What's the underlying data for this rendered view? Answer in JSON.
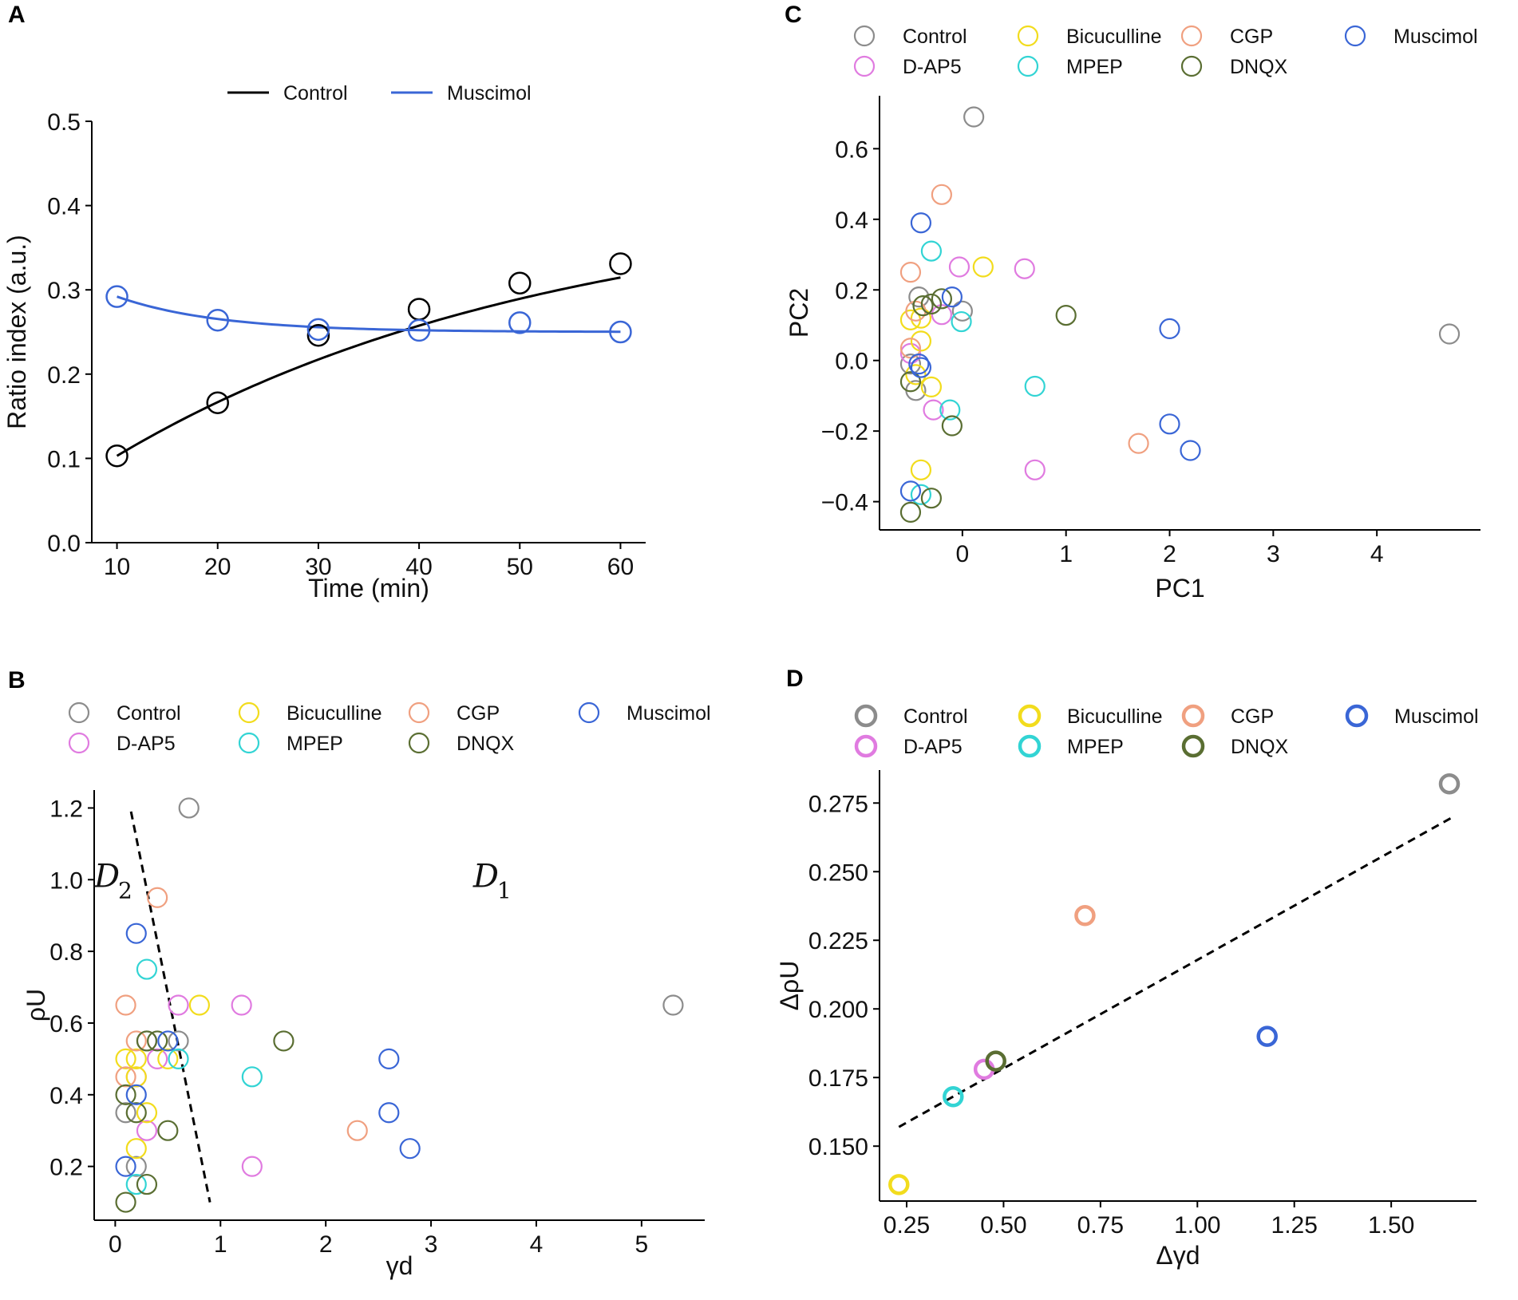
{
  "figure": {
    "colors": {
      "Control": "#8c8c8c",
      "D-AP5": "#e07be0",
      "Bicuculline": "#f2dc1d",
      "MPEP": "#32d4d4",
      "CGP": "#f0a080",
      "DNQX": "#5a6e32",
      "Muscimol": "#3a66d6",
      "ControlLine": "#000000"
    }
  },
  "chart_data": [
    {
      "id": "A",
      "panel_label": "A",
      "type": "line",
      "xlabel": "Time (min)",
      "ylabel": "Ratio index (a.u.)",
      "xlim": [
        7.5,
        62.5
      ],
      "ylim": [
        0.0,
        0.5
      ],
      "xticks": [
        10,
        20,
        30,
        40,
        50,
        60
      ],
      "yticks": [
        0.0,
        0.1,
        0.2,
        0.3,
        0.4,
        0.5
      ],
      "xtick_labels": [
        "10",
        "20",
        "30",
        "40",
        "50",
        "60"
      ],
      "ytick_labels": [
        "0.0",
        "0.1",
        "0.2",
        "0.3",
        "0.4",
        "0.5"
      ],
      "legend": [
        "Control",
        "Muscimol"
      ],
      "series": [
        {
          "name": "Control",
          "points": [
            [
              10,
              0.103
            ],
            [
              20,
              0.166
            ],
            [
              30,
              0.246
            ],
            [
              40,
              0.277
            ],
            [
              50,
              0.308
            ],
            [
              60,
              0.331
            ]
          ],
          "fit": {
            "a": 0.412,
            "b": 0.309,
            "k": 0.0231,
            "x0": 10
          }
        },
        {
          "name": "Muscimol",
          "points": [
            [
              10,
              0.292
            ],
            [
              20,
              0.264
            ],
            [
              30,
              0.253
            ],
            [
              40,
              0.252
            ],
            [
              50,
              0.261
            ],
            [
              60,
              0.25
            ]
          ],
          "fit": {
            "a": 0.25,
            "b": -0.042,
            "k": 0.1,
            "x0": 10
          }
        }
      ]
    },
    {
      "id": "B",
      "panel_label": "B",
      "type": "scatter",
      "xlabel": "γd",
      "ylabel": "ρU",
      "xlim": [
        -0.2,
        5.6
      ],
      "ylim": [
        0.05,
        1.25
      ],
      "xticks": [
        0,
        1,
        2,
        3,
        4,
        5
      ],
      "yticks": [
        0.2,
        0.4,
        0.6,
        0.8,
        1.0,
        1.2
      ],
      "xtick_labels": [
        "0",
        "1",
        "2",
        "3",
        "4",
        "5"
      ],
      "ytick_labels": [
        "0.2",
        "0.4",
        "0.6",
        "0.8",
        "1.0",
        "1.2"
      ],
      "legend": [
        "Control",
        "D-AP5",
        "Bicuculline",
        "MPEP",
        "CGP",
        "DNQX",
        "Muscimol"
      ],
      "divider": [
        [
          0.15,
          1.19
        ],
        [
          0.9,
          0.1
        ]
      ],
      "regions": [
        {
          "label": "D",
          "sub": "2",
          "x": -0.2,
          "y": 0.98
        },
        {
          "label": "D",
          "sub": "1",
          "x": 3.4,
          "y": 0.98
        }
      ],
      "series": [
        {
          "name": "Control",
          "points": [
            [
              0.7,
              1.2
            ],
            [
              5.3,
              0.65
            ],
            [
              0.6,
              0.55
            ],
            [
              0.1,
              0.35
            ],
            [
              0.2,
              0.2
            ],
            [
              0.3,
              0.55
            ]
          ]
        },
        {
          "name": "D-AP5",
          "points": [
            [
              0.6,
              0.65
            ],
            [
              1.2,
              0.65
            ],
            [
              0.4,
              0.5
            ],
            [
              0.3,
              0.3
            ],
            [
              1.3,
              0.2
            ],
            [
              0.2,
              0.45
            ]
          ]
        },
        {
          "name": "Bicuculline",
          "points": [
            [
              0.8,
              0.65
            ],
            [
              0.1,
              0.5
            ],
            [
              0.2,
              0.5
            ],
            [
              0.2,
              0.45
            ],
            [
              0.5,
              0.5
            ],
            [
              0.3,
              0.35
            ],
            [
              0.2,
              0.25
            ]
          ]
        },
        {
          "name": "MPEP",
          "points": [
            [
              0.3,
              0.75
            ],
            [
              0.6,
              0.5
            ],
            [
              1.3,
              0.45
            ],
            [
              0.2,
              0.15
            ]
          ]
        },
        {
          "name": "CGP",
          "points": [
            [
              0.4,
              0.95
            ],
            [
              0.1,
              0.65
            ],
            [
              0.2,
              0.55
            ],
            [
              0.1,
              0.45
            ],
            [
              2.3,
              0.3
            ]
          ]
        },
        {
          "name": "DNQX",
          "points": [
            [
              0.3,
              0.55
            ],
            [
              0.4,
              0.55
            ],
            [
              1.6,
              0.55
            ],
            [
              0.1,
              0.4
            ],
            [
              0.2,
              0.35
            ],
            [
              0.5,
              0.3
            ],
            [
              0.3,
              0.15
            ],
            [
              0.1,
              0.1
            ]
          ]
        },
        {
          "name": "Muscimol",
          "points": [
            [
              0.2,
              0.85
            ],
            [
              0.5,
              0.55
            ],
            [
              2.6,
              0.5
            ],
            [
              0.2,
              0.4
            ],
            [
              2.6,
              0.35
            ],
            [
              2.8,
              0.25
            ],
            [
              0.1,
              0.2
            ]
          ]
        }
      ]
    },
    {
      "id": "C",
      "panel_label": "C",
      "type": "scatter",
      "xlabel": "PC1",
      "ylabel": "PC2",
      "xlim": [
        -0.8,
        5.0
      ],
      "ylim": [
        -0.48,
        0.75
      ],
      "xticks": [
        0,
        1,
        2,
        3,
        4
      ],
      "yticks": [
        -0.4,
        -0.2,
        0.0,
        0.2,
        0.4,
        0.6
      ],
      "xtick_labels": [
        "0",
        "1",
        "2",
        "3",
        "4"
      ],
      "ytick_labels": [
        "−0.4",
        "−0.2",
        "0.0",
        "0.2",
        "0.4",
        "0.6"
      ],
      "legend": [
        "Control",
        "D-AP5",
        "Bicuculline",
        "MPEP",
        "CGP",
        "DNQX",
        "Muscimol"
      ],
      "series": [
        {
          "name": "Control",
          "points": [
            [
              0.11,
              0.69
            ],
            [
              4.7,
              0.075
            ],
            [
              -0.42,
              0.18
            ],
            [
              0.0,
              0.14
            ],
            [
              -0.45,
              -0.085
            ],
            [
              -0.5,
              -0.01
            ]
          ]
        },
        {
          "name": "D-AP5",
          "points": [
            [
              -0.03,
              0.265
            ],
            [
              0.6,
              0.26
            ],
            [
              -0.2,
              0.13
            ],
            [
              -0.28,
              -0.14
            ],
            [
              0.7,
              -0.31
            ],
            [
              -0.5,
              0.02
            ]
          ]
        },
        {
          "name": "Bicuculline",
          "points": [
            [
              0.2,
              0.265
            ],
            [
              -0.5,
              0.115
            ],
            [
              -0.4,
              0.055
            ],
            [
              -0.3,
              -0.075
            ],
            [
              -0.4,
              -0.31
            ],
            [
              -0.4,
              0.12
            ],
            [
              -0.45,
              -0.04
            ]
          ]
        },
        {
          "name": "MPEP",
          "points": [
            [
              -0.3,
              0.31
            ],
            [
              -0.01,
              0.11
            ],
            [
              -0.12,
              -0.14
            ],
            [
              0.7,
              -0.073
            ],
            [
              -0.4,
              -0.38
            ]
          ]
        },
        {
          "name": "CGP",
          "points": [
            [
              -0.2,
              0.47
            ],
            [
              -0.5,
              0.25
            ],
            [
              -0.5,
              0.035
            ],
            [
              1.7,
              -0.235
            ],
            [
              -0.45,
              0.14
            ]
          ]
        },
        {
          "name": "DNQX",
          "points": [
            [
              -0.2,
              0.175
            ],
            [
              -0.3,
              0.16
            ],
            [
              1.0,
              0.128
            ],
            [
              -0.1,
              -0.185
            ],
            [
              -0.5,
              -0.06
            ],
            [
              -0.3,
              -0.39
            ],
            [
              -0.5,
              -0.43
            ],
            [
              -0.38,
              0.155
            ]
          ]
        },
        {
          "name": "Muscimol",
          "points": [
            [
              -0.4,
              0.39
            ],
            [
              -0.1,
              0.18
            ],
            [
              2.0,
              0.09
            ],
            [
              -0.42,
              -0.01
            ],
            [
              -0.4,
              -0.02
            ],
            [
              2.0,
              -0.18
            ],
            [
              2.2,
              -0.255
            ],
            [
              -0.5,
              -0.37
            ]
          ]
        }
      ]
    },
    {
      "id": "D",
      "panel_label": "D",
      "type": "scatter",
      "xlabel": "Δγd",
      "ylabel": "ΔρU",
      "xlim": [
        0.18,
        1.72
      ],
      "ylim": [
        0.13,
        0.287
      ],
      "xticks": [
        0.25,
        0.5,
        0.75,
        1.0,
        1.25,
        1.5
      ],
      "yticks": [
        0.15,
        0.175,
        0.2,
        0.225,
        0.25,
        0.275
      ],
      "xtick_labels": [
        "0.25",
        "0.50",
        "0.75",
        "1.00",
        "1.25",
        "1.50"
      ],
      "ytick_labels": [
        "0.150",
        "0.175",
        "0.200",
        "0.225",
        "0.250",
        "0.275"
      ],
      "legend": [
        "Control",
        "D-AP5",
        "Bicuculline",
        "MPEP",
        "CGP",
        "DNQX",
        "Muscimol"
      ],
      "trend": [
        [
          0.23,
          0.157
        ],
        [
          1.66,
          0.27
        ]
      ],
      "series": [
        {
          "name": "Control",
          "points": [
            [
              1.65,
              0.282
            ]
          ]
        },
        {
          "name": "D-AP5",
          "points": [
            [
              0.45,
              0.178
            ]
          ]
        },
        {
          "name": "Bicuculline",
          "points": [
            [
              0.23,
              0.136
            ]
          ]
        },
        {
          "name": "MPEP",
          "points": [
            [
              0.37,
              0.168
            ]
          ]
        },
        {
          "name": "CGP",
          "points": [
            [
              0.71,
              0.234
            ]
          ]
        },
        {
          "name": "DNQX",
          "points": [
            [
              0.48,
              0.181
            ]
          ]
        },
        {
          "name": "Muscimol",
          "points": [
            [
              1.18,
              0.19
            ]
          ]
        }
      ]
    }
  ]
}
